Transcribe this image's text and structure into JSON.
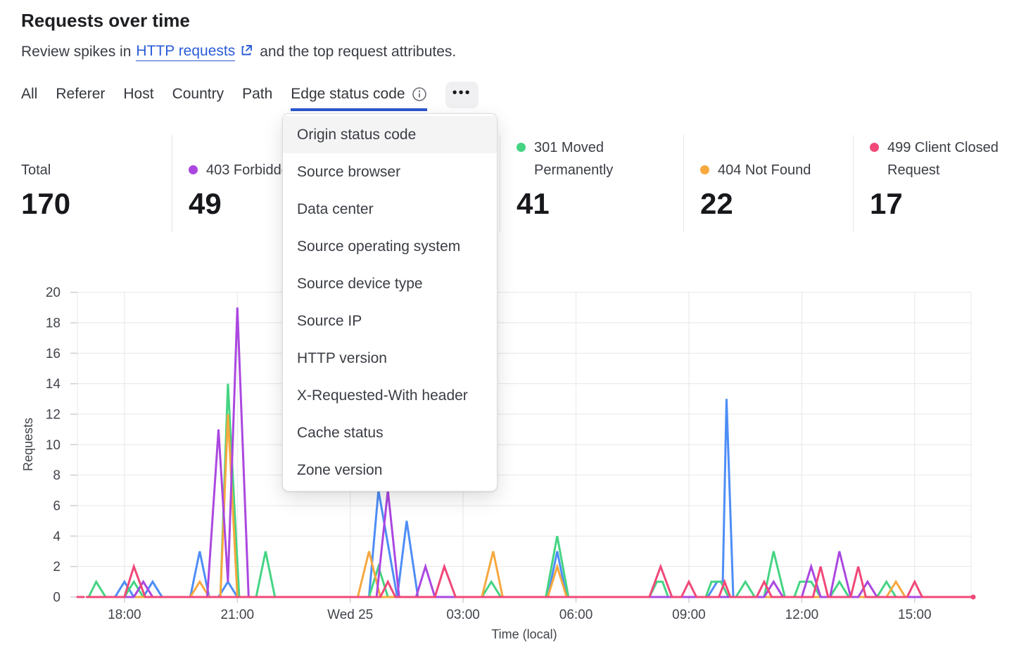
{
  "page": {
    "title": "Requests over time",
    "subtitle_prefix": "Review spikes in",
    "subtitle_link": "HTTP requests",
    "subtitle_suffix": "and the top request attributes."
  },
  "tabs": {
    "items": [
      "All",
      "Referer",
      "Host",
      "Country",
      "Path",
      "Edge status code"
    ],
    "active": "Edge status code",
    "more_label": "•••"
  },
  "menu": {
    "items": [
      "Origin status code",
      "Source browser",
      "Data center",
      "Source operating system",
      "Source device type",
      "Source IP",
      "HTTP version",
      "X-Requested-With header",
      "Cache status",
      "Zone version"
    ],
    "highlighted": "Origin status code"
  },
  "stats": [
    {
      "label": "Total",
      "value": "170",
      "dot_color": null
    },
    {
      "label": "403 Forbidden",
      "value": "49",
      "dot_color": "#ab47e0",
      "note": "label partially covered by open menu"
    },
    {
      "label": "301 Moved Permanently",
      "value": "41",
      "dot_color": "#45d483"
    },
    {
      "label": "404 Not Found",
      "value": "22",
      "dot_color": "#f7a83e"
    },
    {
      "label": "499 Client Closed Request",
      "value": "17",
      "dot_color": "#f04878"
    }
  ],
  "colors": {
    "accent_blue": "#2b57cf",
    "link_blue": "#2a5bd8",
    "grid": "#e7e7ea",
    "tick": "#cfcfd4",
    "axis_text": "#41444b",
    "series_403": "#ab47e0",
    "series_hidden": "#4d8df6",
    "series_301": "#45d483",
    "series_404": "#f7a83e",
    "series_499": "#f04878"
  },
  "chart_data": {
    "type": "line",
    "title": "Requests over time",
    "xlabel": "Time (local)",
    "ylabel": "Requests",
    "ylim": [
      0,
      20
    ],
    "y_ticks": [
      0,
      2,
      4,
      6,
      8,
      10,
      12,
      14,
      16,
      18,
      20
    ],
    "grid": true,
    "legend_position": "none (legend shown as stat row above)",
    "x_unit": "t = hours after chart start (start ≈ Tue 16:30 local, span ≈ 24 h)",
    "x_domain": [
      0.25,
      24
    ],
    "x_ticks": [
      {
        "t": 1.5,
        "label": "18:00"
      },
      {
        "t": 4.5,
        "label": "21:00"
      },
      {
        "t": 7.5,
        "label": "Wed 25"
      },
      {
        "t": 10.5,
        "label": "03:00"
      },
      {
        "t": 13.5,
        "label": "06:00"
      },
      {
        "t": 16.5,
        "label": "09:00"
      },
      {
        "t": 19.5,
        "label": "12:00"
      },
      {
        "t": 22.5,
        "label": "15:00"
      }
    ],
    "series": [
      {
        "name": "",
        "label_hidden_by_menu": true,
        "color": "#4d8df6",
        "points": [
          [
            0.5,
            0
          ],
          [
            1.25,
            0
          ],
          [
            1.5,
            1
          ],
          [
            1.75,
            0
          ],
          [
            2,
            0
          ],
          [
            2.25,
            1
          ],
          [
            2.5,
            0
          ],
          [
            3.25,
            0
          ],
          [
            3.5,
            3
          ],
          [
            3.75,
            0
          ],
          [
            4,
            0
          ],
          [
            4.25,
            1
          ],
          [
            4.5,
            0
          ],
          [
            8,
            0
          ],
          [
            8.25,
            7
          ],
          [
            8.75,
            0
          ],
          [
            9,
            5
          ],
          [
            9.3,
            0
          ],
          [
            12.75,
            0
          ],
          [
            13,
            3
          ],
          [
            13.25,
            0
          ],
          [
            17,
            0
          ],
          [
            17.25,
            1
          ],
          [
            17.4,
            1
          ],
          [
            17.5,
            13
          ],
          [
            17.68,
            0
          ],
          [
            24,
            0
          ]
        ]
      },
      {
        "name": "301 Moved Permanently",
        "color": "#45d483",
        "points": [
          [
            0.5,
            0
          ],
          [
            0.55,
            0
          ],
          [
            0.75,
            1
          ],
          [
            1,
            0
          ],
          [
            1.5,
            0
          ],
          [
            1.75,
            1
          ],
          [
            2,
            0
          ],
          [
            4.05,
            0
          ],
          [
            4.25,
            14
          ],
          [
            4.55,
            0
          ],
          [
            5,
            0
          ],
          [
            5.25,
            3
          ],
          [
            5.5,
            0
          ],
          [
            8,
            0
          ],
          [
            8.25,
            2
          ],
          [
            8.5,
            0
          ],
          [
            11,
            0
          ],
          [
            11.25,
            1
          ],
          [
            11.5,
            0
          ],
          [
            12.7,
            0
          ],
          [
            13,
            4
          ],
          [
            13.3,
            0
          ],
          [
            15.45,
            0
          ],
          [
            15.65,
            1
          ],
          [
            15.8,
            1
          ],
          [
            15.95,
            0
          ],
          [
            16.95,
            0
          ],
          [
            17.1,
            1
          ],
          [
            17.35,
            1
          ],
          [
            17.55,
            0
          ],
          [
            17.75,
            0
          ],
          [
            18,
            1
          ],
          [
            18.25,
            0
          ],
          [
            18.5,
            0
          ],
          [
            18.75,
            3
          ],
          [
            19.05,
            0
          ],
          [
            19.3,
            0
          ],
          [
            19.45,
            1
          ],
          [
            19.75,
            1
          ],
          [
            20,
            0
          ],
          [
            20.25,
            0
          ],
          [
            20.5,
            1
          ],
          [
            20.75,
            0
          ],
          [
            21.5,
            0
          ],
          [
            21.75,
            1
          ],
          [
            22,
            0
          ],
          [
            24,
            0
          ]
        ]
      },
      {
        "name": "404 Not Found",
        "color": "#f7a83e",
        "points": [
          [
            0.5,
            0
          ],
          [
            3.25,
            0
          ],
          [
            3.5,
            1
          ],
          [
            3.75,
            0
          ],
          [
            4.05,
            0
          ],
          [
            4.25,
            12
          ],
          [
            4.5,
            0
          ],
          [
            7.7,
            0
          ],
          [
            8,
            3
          ],
          [
            8.3,
            0
          ],
          [
            11,
            0
          ],
          [
            11.3,
            3
          ],
          [
            11.55,
            0
          ],
          [
            12.75,
            0
          ],
          [
            13,
            2
          ],
          [
            13.25,
            0
          ],
          [
            21.75,
            0
          ],
          [
            22,
            1
          ],
          [
            22.25,
            0
          ],
          [
            24,
            0
          ]
        ]
      },
      {
        "name": "403 Forbidden",
        "color": "#ab47e0",
        "points": [
          [
            0.5,
            0
          ],
          [
            1.75,
            0
          ],
          [
            2,
            1
          ],
          [
            2.25,
            0
          ],
          [
            3.7,
            0
          ],
          [
            4,
            11
          ],
          [
            4.25,
            1
          ],
          [
            4.5,
            19
          ],
          [
            4.8,
            0
          ],
          [
            8.2,
            0
          ],
          [
            8.5,
            7
          ],
          [
            8.8,
            0
          ],
          [
            9.25,
            0
          ],
          [
            9.5,
            2
          ],
          [
            9.75,
            0
          ],
          [
            18.5,
            0
          ],
          [
            18.75,
            1
          ],
          [
            19,
            0
          ],
          [
            19.5,
            0
          ],
          [
            19.75,
            2
          ],
          [
            20,
            0
          ],
          [
            20.25,
            0
          ],
          [
            20.5,
            3
          ],
          [
            20.8,
            0
          ],
          [
            21,
            0
          ],
          [
            21.25,
            1
          ],
          [
            21.5,
            0
          ],
          [
            24,
            0
          ]
        ]
      },
      {
        "name": "499 Client Closed Request",
        "color": "#f04878",
        "end_dot": true,
        "lead_dash": [
          [
            0.25,
            0
          ],
          [
            0.42,
            0
          ]
        ],
        "points": [
          [
            0.5,
            0
          ],
          [
            1.5,
            0
          ],
          [
            1.75,
            2
          ],
          [
            2.05,
            0
          ],
          [
            8.3,
            0
          ],
          [
            8.5,
            1
          ],
          [
            8.7,
            0
          ],
          [
            9.75,
            0
          ],
          [
            10,
            2
          ],
          [
            10.3,
            0
          ],
          [
            15.45,
            0
          ],
          [
            15.75,
            2
          ],
          [
            16.05,
            0
          ],
          [
            16.3,
            0
          ],
          [
            16.5,
            1
          ],
          [
            16.7,
            0
          ],
          [
            17.3,
            0
          ],
          [
            17.45,
            1
          ],
          [
            17.6,
            0
          ],
          [
            18.3,
            0
          ],
          [
            18.5,
            1
          ],
          [
            18.7,
            0
          ],
          [
            19.8,
            0
          ],
          [
            20,
            2
          ],
          [
            20.2,
            0
          ],
          [
            20.8,
            0
          ],
          [
            21,
            2
          ],
          [
            21.2,
            0
          ],
          [
            22.3,
            0
          ],
          [
            22.5,
            1
          ],
          [
            22.7,
            0
          ],
          [
            24,
            0
          ]
        ]
      }
    ]
  }
}
